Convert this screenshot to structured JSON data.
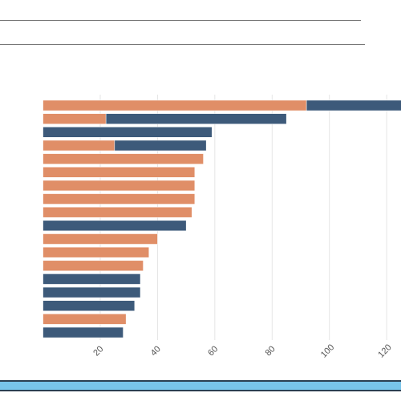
{
  "colors": {
    "orange": "#e08e67",
    "navy": "#3d5a7a",
    "grid": "#e5e5e5",
    "scrollbar": "#78c4ea",
    "scrollbar_border": "#2a3f52"
  },
  "chart_data": {
    "type": "bar",
    "orientation": "horizontal",
    "stacked": true,
    "title": "",
    "xlabel": "",
    "ylabel": "",
    "xlim": [
      -15,
      125
    ],
    "ticks": [
      "20",
      "40",
      "60",
      "80",
      "100",
      "120"
    ],
    "tick_values": [
      20,
      40,
      60,
      80,
      100,
      120
    ],
    "grid": true,
    "series": [
      {
        "color": "orange",
        "values": [
          92,
          22,
          0,
          25,
          56,
          53,
          53,
          53,
          52,
          0,
          40,
          37,
          35,
          0,
          0,
          0,
          29,
          0
        ]
      },
      {
        "color": "navy",
        "values": [
          38,
          63,
          59,
          32,
          0,
          0,
          0,
          0,
          0,
          50,
          0,
          0,
          0,
          34,
          34,
          32,
          0,
          28
        ]
      }
    ]
  }
}
